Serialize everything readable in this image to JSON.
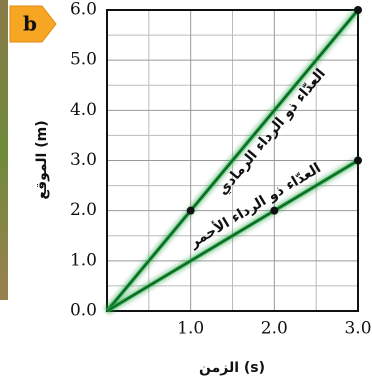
{
  "chart_data": {
    "type": "line",
    "panel_label": "b",
    "xlabel": "الزمن (s)",
    "ylabel": "الموقع (m)",
    "xlim": [
      0,
      3
    ],
    "ylim": [
      0,
      6
    ],
    "xticks": [
      {
        "value": 1,
        "label": "1.0"
      },
      {
        "value": 2,
        "label": "2.0"
      },
      {
        "value": 3,
        "label": "3.0"
      }
    ],
    "yticks": [
      {
        "value": 0,
        "label": "0.0"
      },
      {
        "value": 1,
        "label": "1.0"
      },
      {
        "value": 2,
        "label": "2.0"
      },
      {
        "value": 3,
        "label": "3.0"
      },
      {
        "value": 4,
        "label": "4.0"
      },
      {
        "value": 5,
        "label": "5.0"
      },
      {
        "value": 6,
        "label": "6.0"
      }
    ],
    "grid": true,
    "minor_grid": true,
    "series": [
      {
        "name": "العدّاء ذو الرداء الرمادي",
        "color": "#1e9a3c",
        "x": [
          0,
          1,
          3
        ],
        "values": [
          0,
          2,
          6
        ]
      },
      {
        "name": "العدّاء ذو الرداء الأحمر",
        "color": "#1e9a3c",
        "x": [
          0,
          2,
          3
        ],
        "values": [
          0,
          2,
          3
        ]
      }
    ]
  }
}
